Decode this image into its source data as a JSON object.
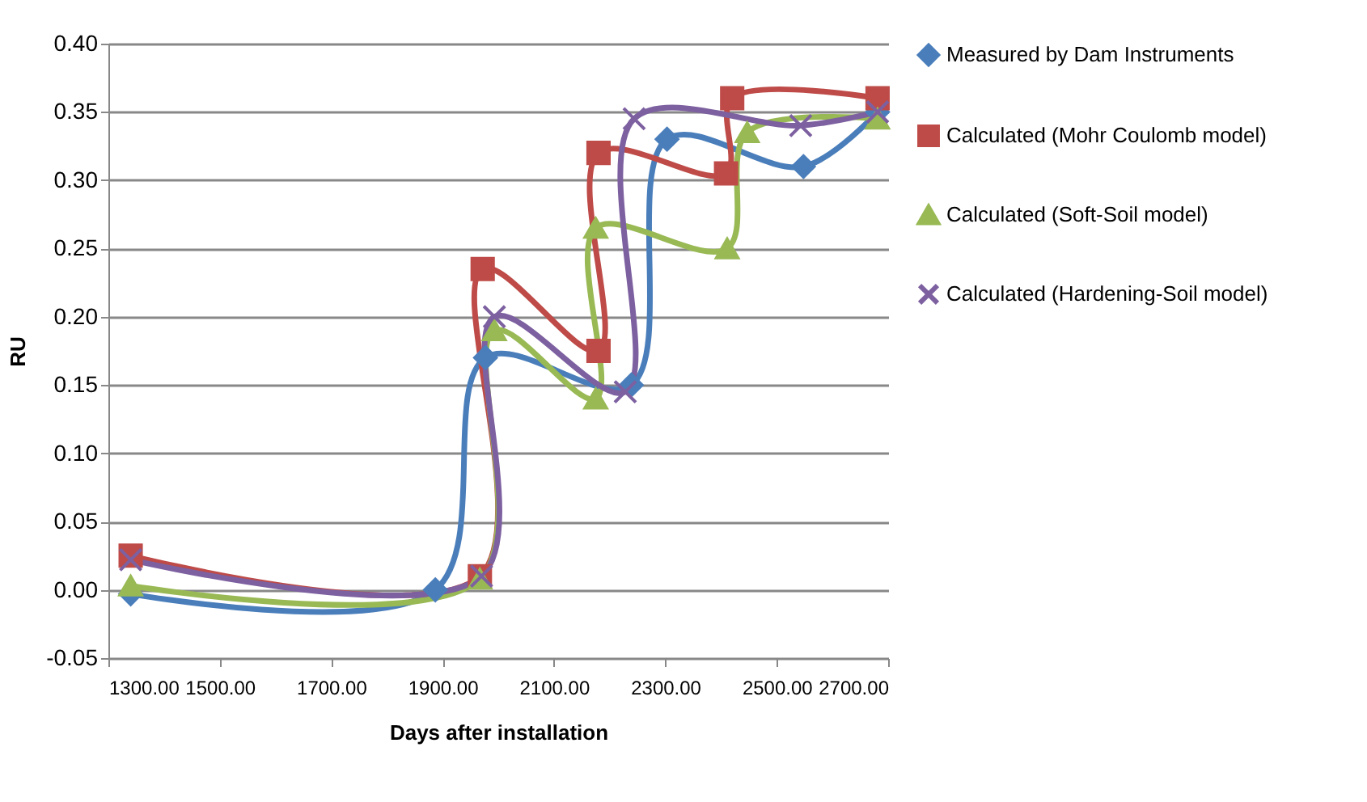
{
  "chart_data": {
    "type": "line",
    "xlabel": "Days after installation",
    "ylabel": "RU",
    "xlim": [
      1300,
      2700
    ],
    "xticks": [
      {
        "value": 1300,
        "label": "1300.00"
      },
      {
        "value": 1500,
        "label": "1500.00"
      },
      {
        "value": 1700,
        "label": "1700.00"
      },
      {
        "value": 1900,
        "label": "1900.00"
      },
      {
        "value": 2100,
        "label": "2100.00"
      },
      {
        "value": 2300,
        "label": "2300.00"
      },
      {
        "value": 2500,
        "label": "2500.00"
      },
      {
        "value": 2700,
        "label": "2700.00"
      }
    ],
    "ylim": [
      -0.05,
      0.4
    ],
    "yticks": [
      {
        "value": -0.05,
        "label": "-0.05"
      },
      {
        "value": 0,
        "label": "0.00"
      },
      {
        "value": 0.05,
        "label": "0.05"
      },
      {
        "value": 0.1,
        "label": "0.10"
      },
      {
        "value": 0.15,
        "label": "0.15"
      },
      {
        "value": 0.2,
        "label": "0.20"
      },
      {
        "value": 0.25,
        "label": "0.25"
      },
      {
        "value": 0.3,
        "label": "0.30"
      },
      {
        "value": 0.35,
        "label": "0.35"
      },
      {
        "value": 0.4,
        "label": "0.40"
      }
    ],
    "grid": "y",
    "legend": "right",
    "series": [
      {
        "name": "Measured by Dam Instruments",
        "color": "#4a7ebb",
        "marker": "diamond",
        "x": [
          1340,
          1887,
          1977,
          2239,
          2303,
          2548,
          2681
        ],
        "values": [
          -0.003,
          0.0,
          0.17,
          0.15,
          0.33,
          0.31,
          0.35
        ]
      },
      {
        "name": "Calculated (Mohr Coulomb model)",
        "color": "#be4b48",
        "marker": "square",
        "x": [
          1340,
          1967,
          1972,
          2180,
          2180,
          2409,
          2420,
          2681
        ],
        "values": [
          0.025,
          0.01,
          0.235,
          0.175,
          0.32,
          0.305,
          0.36,
          0.36
        ]
      },
      {
        "name": "Calculated (Soft-Soil model)",
        "color": "#98b954",
        "marker": "triangle",
        "x": [
          1340,
          1967,
          1993,
          2175,
          2175,
          2411,
          2447,
          2681
        ],
        "values": [
          0.003,
          0.008,
          0.19,
          0.14,
          0.265,
          0.25,
          0.335,
          0.345
        ]
      },
      {
        "name": "Calculated (Hardening-Soil model)",
        "color": "#7d60a0",
        "marker": "cross",
        "x": [
          1340,
          1970,
          1993,
          2228,
          2244,
          2543,
          2681
        ],
        "values": [
          0.022,
          0.01,
          0.2,
          0.145,
          0.345,
          0.34,
          0.35
        ]
      }
    ]
  }
}
